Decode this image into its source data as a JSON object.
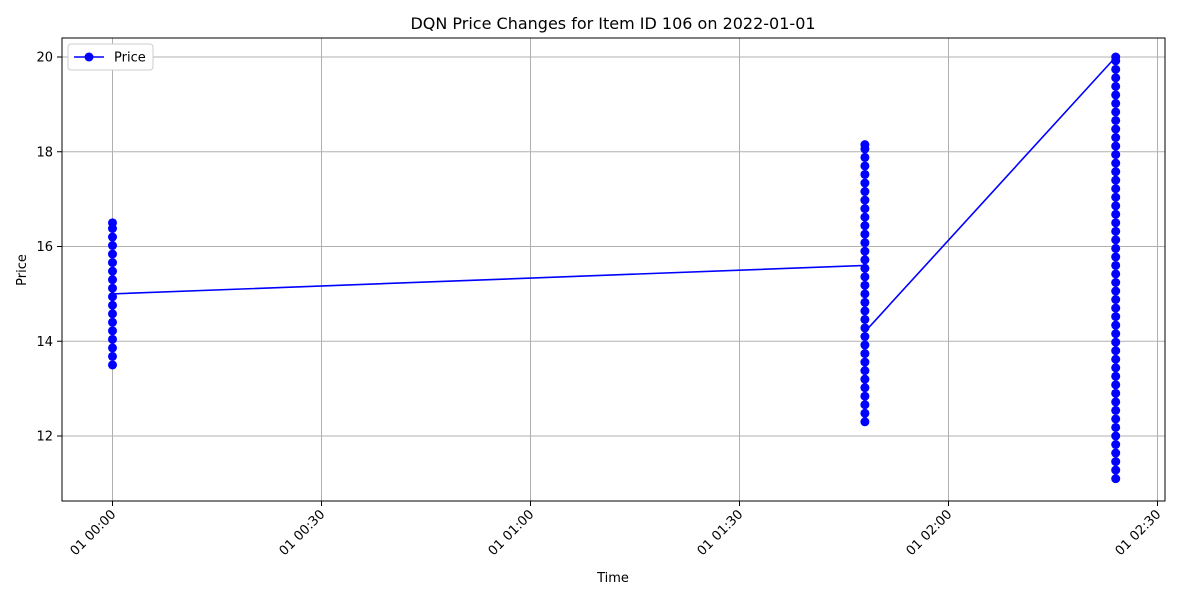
{
  "chart_data": {
    "type": "line",
    "title": "DQN Price Changes for Item ID 106 on 2022-01-01",
    "xlabel": "Time",
    "ylabel": "Price",
    "x_tick_labels": [
      "01 00:00",
      "01 00:30",
      "01 01:00",
      "01 01:30",
      "01 02:00",
      "01 02:30"
    ],
    "y_tick_labels": [
      "12",
      "14",
      "16",
      "18",
      "20"
    ],
    "y_ticks": [
      12,
      14,
      16,
      18,
      20
    ],
    "ylim": [
      10.6,
      20.4
    ],
    "xlim": [
      "2022-01-01 00:00",
      "2022-01-01 02:29"
    ],
    "grid": true,
    "legend_position": "upper-left",
    "colors": {
      "series": "#0000ff",
      "grid": "#b0b0b0"
    },
    "series": [
      {
        "name": "Price",
        "marker": "circle",
        "line_points": [
          {
            "x": "2022-01-01 00:00",
            "y": 15.0
          },
          {
            "x": "2022-01-01 01:48",
            "y": 15.6
          },
          {
            "x": "2022-01-01 01:48",
            "y": 14.2
          },
          {
            "x": "2022-01-01 02:24",
            "y": 20.0
          }
        ],
        "marker_clusters": [
          {
            "x": "2022-01-01 00:00",
            "y_min": 13.5,
            "y_max": 16.5
          },
          {
            "x": "2022-01-01 01:48",
            "y_min": 12.3,
            "y_max": 18.15
          },
          {
            "x": "2022-01-01 02:24",
            "y_min": 11.1,
            "y_max": 20.0
          }
        ]
      }
    ]
  }
}
